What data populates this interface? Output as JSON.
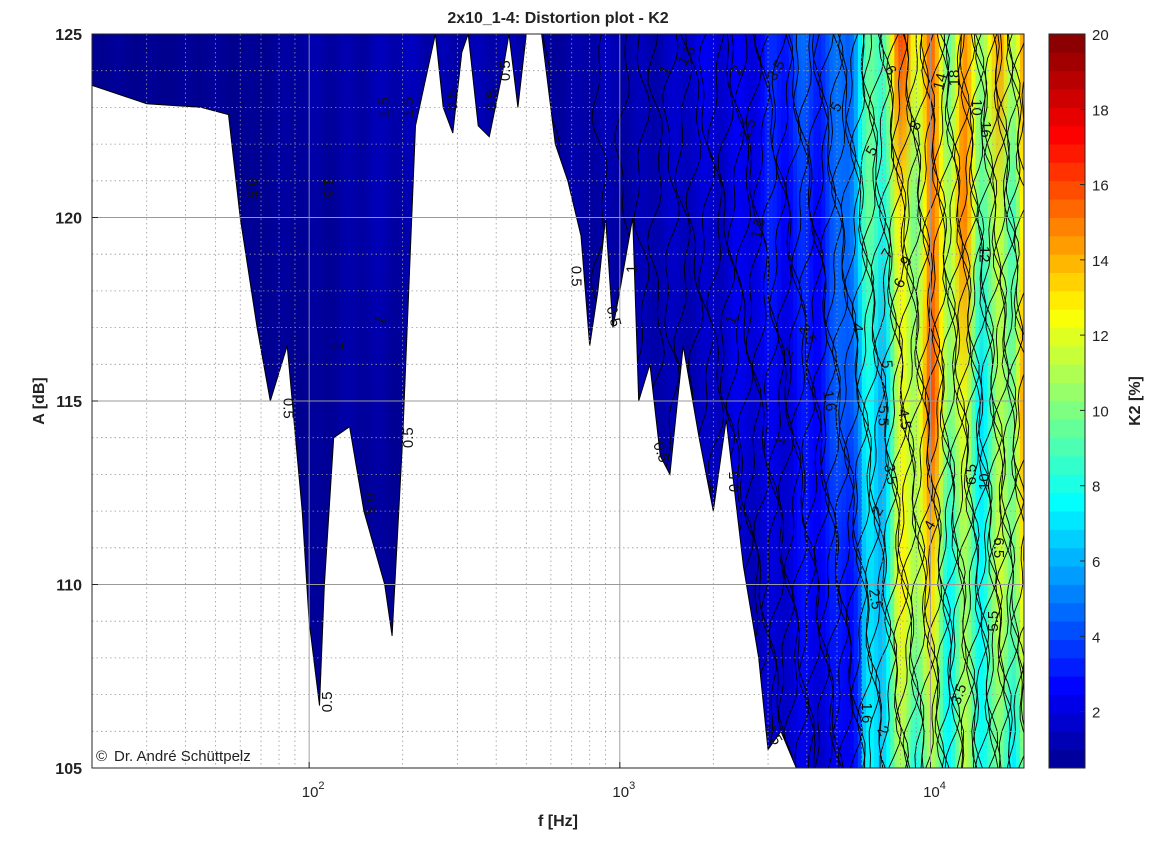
{
  "chart_data": {
    "type": "heatmap",
    "title": "2x10_1-4: Distortion plot - K2",
    "xlabel": "f [Hz]",
    "ylabel": "A [dB]",
    "colorbar_label": "K2 [%]",
    "x_scale": "log",
    "xlim": [
      20,
      20000
    ],
    "ylim": [
      105,
      125
    ],
    "x_ticks": [
      {
        "value": 100,
        "base": "10",
        "exp": "2"
      },
      {
        "value": 1000,
        "base": "10",
        "exp": "3"
      },
      {
        "value": 10000,
        "base": "10",
        "exp": "4"
      }
    ],
    "y_ticks": [
      105,
      110,
      115,
      120,
      125
    ],
    "colorbar_ticks": [
      2,
      4,
      6,
      8,
      10,
      12,
      14,
      16,
      18,
      20
    ],
    "colorbar_range": [
      0.5,
      20
    ],
    "colormap": [
      "#00008f",
      "#0000ff",
      "#00ffff",
      "#ffff00",
      "#ff0000",
      "#800000"
    ],
    "grid": true,
    "minor_grid": true,
    "valid_region_upper_edge": [
      [
        20,
        123.6
      ],
      [
        30,
        123.1
      ],
      [
        45,
        123.0
      ],
      [
        55,
        122.8
      ],
      [
        60,
        120.0
      ],
      [
        68,
        117.0
      ],
      [
        75,
        115.0
      ],
      [
        85,
        116.5
      ],
      [
        95,
        112.0
      ],
      [
        100,
        109.0
      ],
      [
        108,
        106.7
      ],
      [
        112,
        110.0
      ],
      [
        120,
        114.0
      ],
      [
        135,
        114.3
      ],
      [
        150,
        112.0
      ],
      [
        175,
        110.0
      ],
      [
        185,
        108.6
      ],
      [
        200,
        114.0
      ],
      [
        220,
        122.5
      ],
      [
        255,
        125.0
      ],
      [
        270,
        123.0
      ],
      [
        290,
        122.3
      ],
      [
        310,
        124.5
      ],
      [
        325,
        125.0
      ],
      [
        350,
        122.5
      ],
      [
        380,
        122.2
      ],
      [
        420,
        124.0
      ],
      [
        440,
        125.0
      ],
      [
        470,
        123.0
      ],
      [
        500,
        125.0
      ],
      [
        560,
        125.0
      ],
      [
        620,
        122.0
      ],
      [
        680,
        121.0
      ],
      [
        750,
        119.5
      ],
      [
        800,
        116.5
      ],
      [
        850,
        118.0
      ],
      [
        900,
        120.0
      ],
      [
        950,
        117.0
      ],
      [
        1000,
        118.0
      ],
      [
        1100,
        120.0
      ],
      [
        1150,
        115.0
      ],
      [
        1250,
        116.0
      ],
      [
        1350,
        113.5
      ],
      [
        1450,
        113.0
      ],
      [
        1600,
        116.5
      ],
      [
        1800,
        114.0
      ],
      [
        2000,
        112.0
      ],
      [
        2200,
        114.5
      ],
      [
        2500,
        110.5
      ],
      [
        2800,
        108.0
      ],
      [
        3000,
        105.5
      ],
      [
        3300,
        106.0
      ],
      [
        3700,
        105.0
      ]
    ],
    "iso_lines": [
      0.5,
      1,
      1.5,
      2,
      2.5,
      3,
      3.5,
      4,
      4.5,
      5,
      5.5,
      6,
      6.5,
      7,
      7.5,
      8,
      8.5,
      9,
      9.5,
      10,
      12,
      14,
      16,
      18,
      20
    ],
    "k2_profile_at_120dB": [
      {
        "f": 60,
        "k2": 0.5
      },
      {
        "f": 150,
        "k2": 1.0
      },
      {
        "f": 300,
        "k2": 1.0
      },
      {
        "f": 700,
        "k2": 0.8
      },
      {
        "f": 1500,
        "k2": 1.3
      },
      {
        "f": 3000,
        "k2": 2.5
      },
      {
        "f": 5000,
        "k2": 4.0
      },
      {
        "f": 7000,
        "k2": 9.0
      },
      {
        "f": 9000,
        "k2": 14.0
      },
      {
        "f": 12000,
        "k2": 12.0
      },
      {
        "f": 16000,
        "k2": 10.0
      },
      {
        "f": 20000,
        "k2": 14.0
      }
    ],
    "contour_labels": [
      {
        "text": "0.5",
        "f": 65,
        "a": 120.8,
        "rot": 90
      },
      {
        "text": "0.5",
        "f": 85,
        "a": 114.8,
        "rot": 90
      },
      {
        "text": "0.5",
        "f": 115,
        "a": 106.8,
        "rot": -90
      },
      {
        "text": "0.5",
        "f": 155,
        "a": 112.2,
        "rot": 90
      },
      {
        "text": "0.5",
        "f": 210,
        "a": 114.0,
        "rot": -90
      },
      {
        "text": "0.5",
        "f": 290,
        "a": 123.2,
        "rot": -90
      },
      {
        "text": "0.5",
        "f": 390,
        "a": 123.2,
        "rot": -90
      },
      {
        "text": "0.5",
        "f": 430,
        "a": 124.0,
        "rot": -90
      },
      {
        "text": "0.5",
        "f": 720,
        "a": 118.4,
        "rot": 90
      },
      {
        "text": "0.5",
        "f": 950,
        "a": 117.3,
        "rot": 75
      },
      {
        "text": "0.5",
        "f": 1350,
        "a": 113.6,
        "rot": 70
      },
      {
        "text": "0.5",
        "f": 2350,
        "a": 112.8,
        "rot": -90
      },
      {
        "text": "0.5",
        "f": 3100,
        "a": 105.9,
        "rot": 60
      },
      {
        "text": "1",
        "f": 125,
        "a": 116.5,
        "rot": -90
      },
      {
        "text": "1",
        "f": 170,
        "a": 117.2,
        "rot": -65
      },
      {
        "text": "1",
        "f": 1100,
        "a": 118.6,
        "rot": -90
      },
      {
        "text": "1",
        "f": 1400,
        "a": 124.0,
        "rot": -60
      },
      {
        "text": "1",
        "f": 2300,
        "a": 117.2,
        "rot": -70
      },
      {
        "text": "1",
        "f": 3300,
        "a": 113.9,
        "rot": -70
      },
      {
        "text": "1.5",
        "f": 115,
        "a": 120.8,
        "rot": 90
      },
      {
        "text": "1.5",
        "f": 175,
        "a": 123.0,
        "rot": -90
      },
      {
        "text": "1.5",
        "f": 210,
        "a": 123.0,
        "rot": -90
      },
      {
        "text": "1.5",
        "f": 1650,
        "a": 124.4,
        "rot": -60
      },
      {
        "text": "1.5",
        "f": 2800,
        "a": 119.7,
        "rot": -75
      },
      {
        "text": "1.6",
        "f": 4700,
        "a": 115.0,
        "rot": 80
      },
      {
        "text": "1.6",
        "f": 6200,
        "a": 106.5,
        "rot": 90
      },
      {
        "text": "2",
        "f": 2400,
        "a": 124.0,
        "rot": -60
      },
      {
        "text": "2",
        "f": 3500,
        "a": 116.3,
        "rot": -60
      },
      {
        "text": "2",
        "f": 6800,
        "a": 112.0,
        "rot": -60
      },
      {
        "text": "2",
        "f": 7000,
        "a": 106.0,
        "rot": 60
      },
      {
        "text": "2.5",
        "f": 2600,
        "a": 122.4,
        "rot": -70
      },
      {
        "text": "2.5",
        "f": 4000,
        "a": 116.8,
        "rot": 60
      },
      {
        "text": "2.5",
        "f": 6600,
        "a": 109.6,
        "rot": 80
      },
      {
        "text": "3.5",
        "f": 3200,
        "a": 124.0,
        "rot": -60
      },
      {
        "text": "3.5",
        "f": 7400,
        "a": 113.0,
        "rot": 80
      },
      {
        "text": "4",
        "f": 5800,
        "a": 117.0,
        "rot": 90
      },
      {
        "text": "4",
        "f": 10000,
        "a": 111.6,
        "rot": -60
      },
      {
        "text": "4.5",
        "f": 8200,
        "a": 114.5,
        "rot": 80
      },
      {
        "text": "5",
        "f": 5000,
        "a": 123.0,
        "rot": -60
      },
      {
        "text": "5",
        "f": 6500,
        "a": 121.8,
        "rot": -60
      },
      {
        "text": "5",
        "f": 7200,
        "a": 116.0,
        "rot": 85
      },
      {
        "text": "5.5",
        "f": 7000,
        "a": 114.6,
        "rot": 90
      },
      {
        "text": "6",
        "f": 8000,
        "a": 118.2,
        "rot": -60
      },
      {
        "text": "6",
        "f": 7400,
        "a": 124.0,
        "rot": 60
      },
      {
        "text": "6.5",
        "f": 16500,
        "a": 111.0,
        "rot": 90
      },
      {
        "text": "7",
        "f": 7300,
        "a": 119.0,
        "rot": -60
      },
      {
        "text": "8",
        "f": 9000,
        "a": 122.5,
        "rot": -60
      },
      {
        "text": "9",
        "f": 8400,
        "a": 118.8,
        "rot": -60
      },
      {
        "text": "10",
        "f": 15000,
        "a": 112.8,
        "rot": -90
      },
      {
        "text": "10",
        "f": 14000,
        "a": 123.0,
        "rot": 90
      },
      {
        "text": "12",
        "f": 14800,
        "a": 119.0,
        "rot": 90
      },
      {
        "text": "14",
        "f": 10800,
        "a": 123.7,
        "rot": -75
      },
      {
        "text": "16",
        "f": 15000,
        "a": 122.4,
        "rot": 90
      },
      {
        "text": "18",
        "f": 12000,
        "a": 123.8,
        "rot": -90
      },
      {
        "text": "6.5",
        "f": 13600,
        "a": 113.0,
        "rot": -90
      },
      {
        "text": "5.5",
        "f": 16000,
        "a": 109.0,
        "rot": -90
      },
      {
        "text": "3.5",
        "f": 12400,
        "a": 107.0,
        "rot": -70
      }
    ]
  },
  "credit": {
    "symbol": "©",
    "text": "Dr. André Schüttpelz"
  }
}
